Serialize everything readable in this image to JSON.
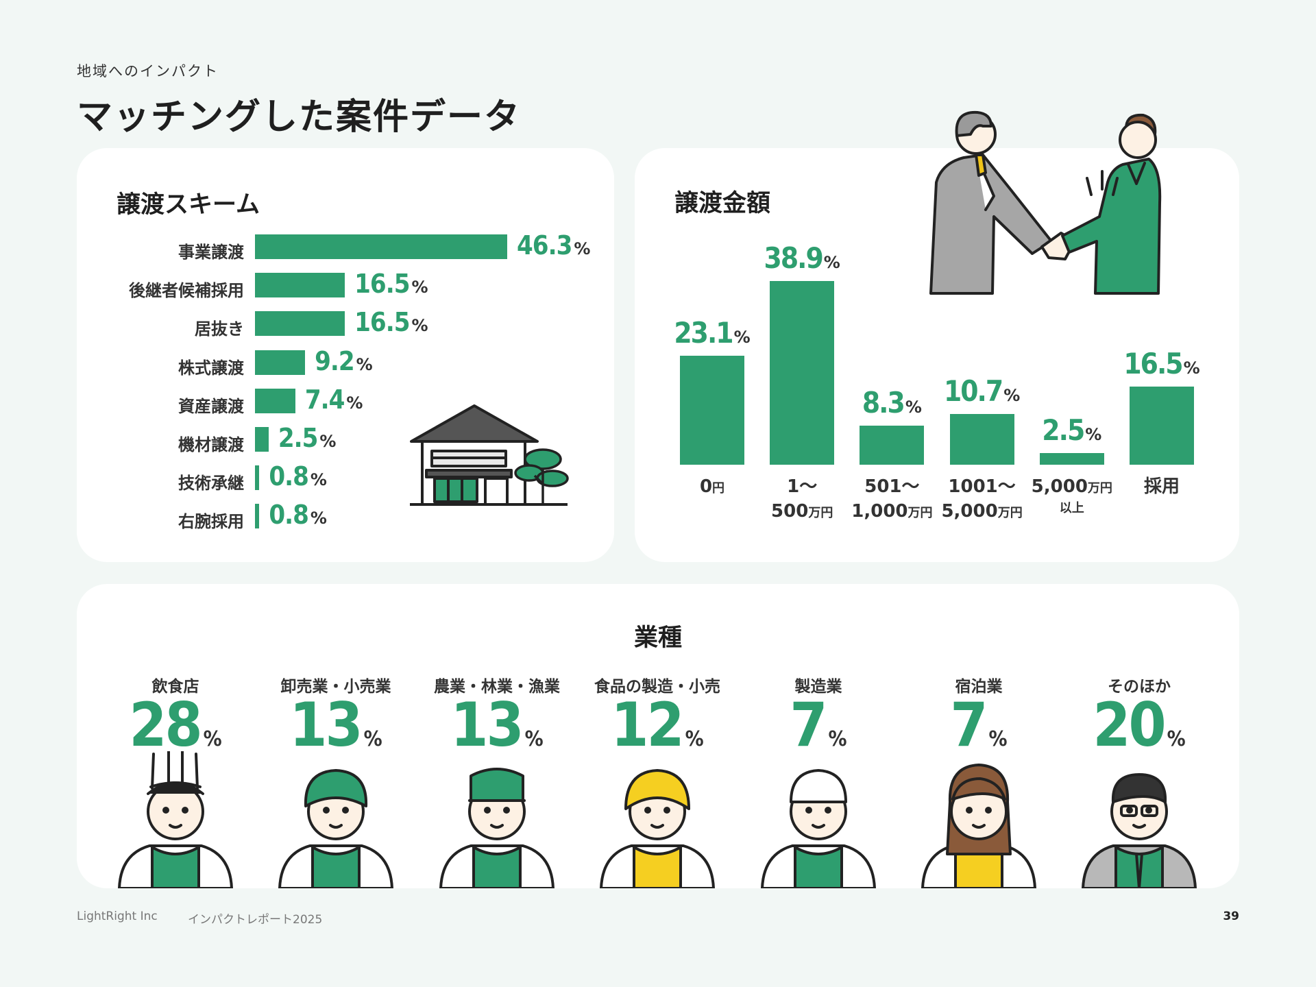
{
  "header": {
    "eyebrow": "地域へのインパクト",
    "title": "マッチングした案件データ"
  },
  "colors": {
    "accent": "#2e9e6f",
    "background": "#f2f7f5",
    "card": "#ffffff"
  },
  "chart_data": [
    {
      "type": "bar",
      "orientation": "horizontal",
      "title": "譲渡スキーム",
      "unit": "%",
      "categories": [
        "事業譲渡",
        "後継者候補採用",
        "居抜き",
        "株式譲渡",
        "資産譲渡",
        "機材譲渡",
        "技術承継",
        "右腕採用"
      ],
      "values": [
        46.3,
        16.5,
        16.5,
        9.2,
        7.4,
        2.5,
        0.8,
        0.8
      ],
      "value_labels": [
        "46.3",
        "16.5",
        "16.5",
        "9.2",
        "7.4",
        "2.5",
        "0.8",
        "0.8"
      ]
    },
    {
      "type": "bar",
      "orientation": "vertical",
      "title": "譲渡金額",
      "unit": "%",
      "categories": [
        {
          "main": "0",
          "unit": "円",
          "line2": "",
          "unit2": "",
          "sub": ""
        },
        {
          "main": "1～",
          "unit": "",
          "line2": "500",
          "unit2": "万円",
          "sub": ""
        },
        {
          "main": "501～",
          "unit": "",
          "line2": "1,000",
          "unit2": "万円",
          "sub": ""
        },
        {
          "main": "1001～",
          "unit": "",
          "line2": "5,000",
          "unit2": "万円",
          "sub": ""
        },
        {
          "main": "5,000",
          "unit": "万円",
          "line2": "",
          "unit2": "",
          "sub": "以上"
        },
        {
          "main": "採用",
          "unit": "",
          "line2": "",
          "unit2": "",
          "sub": ""
        }
      ],
      "values": [
        23.1,
        38.9,
        8.3,
        10.7,
        2.5,
        16.5
      ],
      "value_labels": [
        "23.1",
        "38.9",
        "8.3",
        "10.7",
        "2.5",
        "16.5"
      ]
    },
    {
      "type": "table",
      "title": "業種",
      "unit": "%",
      "categories": [
        "飲食店",
        "卸売業・小売業",
        "農業・林業・漁業",
        "食品の製造・小売",
        "製造業",
        "宿泊業",
        "そのほか"
      ],
      "values": [
        28,
        13,
        13,
        12,
        7,
        7,
        20
      ],
      "value_labels": [
        "28",
        "13",
        "13",
        "12",
        "7",
        "7",
        "20"
      ],
      "icons": [
        "chef-avatar-icon",
        "shop-clerk-avatar-icon",
        "farmer-avatar-icon",
        "food-maker-avatar-icon",
        "factory-worker-avatar-icon",
        "hotel-staff-avatar-icon",
        "businessman-avatar-icon"
      ]
    }
  ],
  "illustrations": {
    "house": "house-tree-icon",
    "handshake": "handshake-icon"
  },
  "footer": {
    "company": "LightRight Inc",
    "report": "インパクトレポート2025",
    "page": "39"
  }
}
